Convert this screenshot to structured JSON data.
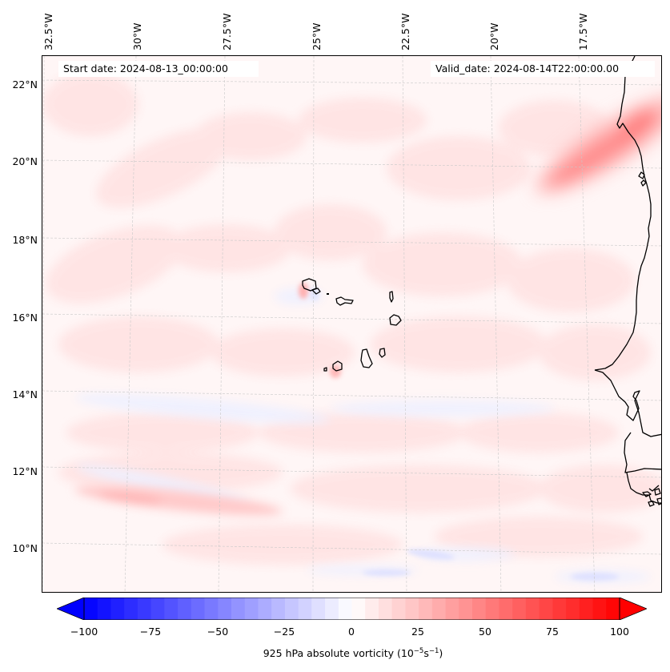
{
  "header": {
    "start_date": "Start date: 2024-08-13_00:00:00",
    "valid_date": "Valid_date: 2024-08-14T22:00:00.00"
  },
  "axes": {
    "lon_labels": [
      "32.5°W",
      "30°W",
      "27.5°W",
      "25°W",
      "22.5°W",
      "20°W",
      "17.5°W"
    ],
    "lat_labels": [
      "22°N",
      "20°N",
      "18°N",
      "16°N",
      "14°N",
      "12°N",
      "10°N"
    ]
  },
  "colorbar": {
    "tick_labels": [
      "−100",
      "−75",
      "−50",
      "−25",
      "0",
      "25",
      "50",
      "75",
      "100"
    ],
    "title_main": "925 hPa absolute vorticity (10",
    "title_exp1": "−5",
    "title_mid": "s",
    "title_exp2": "−1",
    "title_end": ")",
    "min_color": "#0000ff",
    "mid_color": "#ffffff",
    "max_color": "#ff0000"
  },
  "chart_data": {
    "type": "heatmap",
    "title": "",
    "variable": "925 hPa absolute vorticity",
    "units": "10^-5 s^-1",
    "start_date": "2024-08-13_00:00:00",
    "valid_date": "2024-08-14T22:00:00.00",
    "colormap": "bwr",
    "vmin": -100,
    "vmax": 100,
    "colorbar_ticks": [
      -100,
      -75,
      -50,
      -25,
      0,
      25,
      50,
      75,
      100
    ],
    "colorbar_extend": "both",
    "lon_ticks": [
      -32.5,
      -30,
      -27.5,
      -25,
      -22.5,
      -20,
      -17.5
    ],
    "lat_ticks": [
      22,
      20,
      18,
      16,
      14,
      12,
      10
    ],
    "lon_range": [
      -33,
      -15.5
    ],
    "lat_range": [
      9,
      22.5
    ],
    "grid": true,
    "features": [
      {
        "name": "positive vorticity band off Western Sahara/Mauritania coast",
        "lon_range": [
          -17.5,
          -15.5
        ],
        "lat_range": [
          19.5,
          21.5
        ],
        "approx_value": 55
      },
      {
        "name": "positive vorticity streak south-west",
        "lon_range": [
          -32.5,
          -27.5
        ],
        "lat_range": [
          11,
          11.5
        ],
        "approx_value": 20
      },
      {
        "name": "weak negative vorticity streaks",
        "lon_range": [
          -24,
          -16
        ],
        "lat_range": [
          9.5,
          10
        ],
        "approx_value": -10
      },
      {
        "name": "background field",
        "approx_value": 5
      }
    ]
  }
}
